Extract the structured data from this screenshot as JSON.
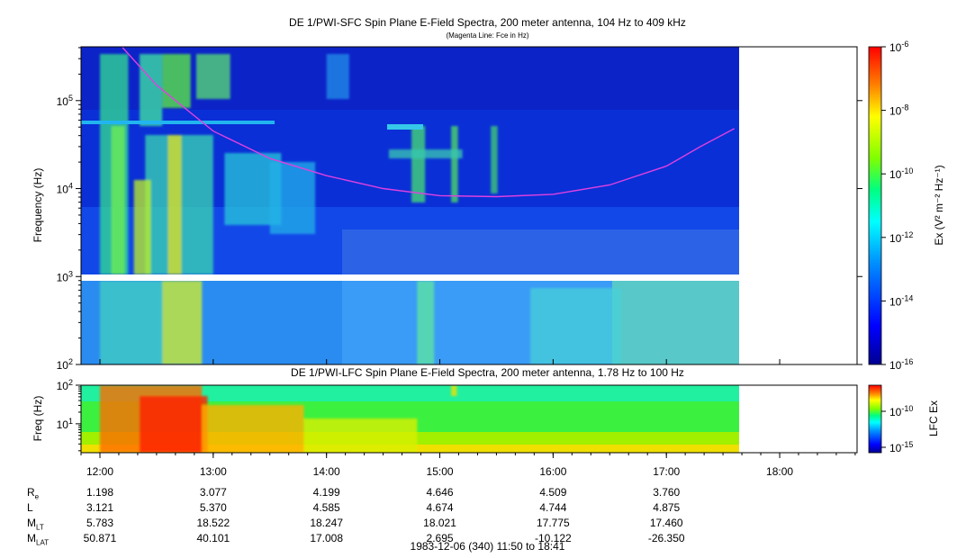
{
  "colors": {
    "background": "#ffffff",
    "fce_line": "#e040e0",
    "gap": "#ffffff"
  },
  "titles": {
    "sfc_title": "DE 1/PWI-SFC  Spin Plane E-Field Spectra, 200 meter antenna, 104 Hz to 409 kHz",
    "sfc_subtitle": "(Magenta Line: Fce in Hz)",
    "lfc_title": "DE 1/PWI-LFC  Spin Plane E-Field Spectra, 200 meter antenna, 1.78 Hz to 100 Hz",
    "footer": "1983-12-06 (340) 11:50 to 18:41"
  },
  "ephemeris": {
    "times": [
      "12:00",
      "13:00",
      "14:00",
      "15:00",
      "16:00",
      "17:00",
      "18:00"
    ],
    "rows": [
      {
        "label": "R",
        "sub": "e",
        "values": [
          "1.198",
          "3.077",
          "4.199",
          "4.646",
          "4.509",
          "3.760"
        ]
      },
      {
        "label": "L",
        "sub": "",
        "values": [
          "3.121",
          "5.370",
          "4.585",
          "4.674",
          "4.744",
          "4.875"
        ]
      },
      {
        "label": "M",
        "sub": "LT",
        "values": [
          "5.783",
          "18.522",
          "18.247",
          "18.021",
          "17.775",
          "17.460"
        ]
      },
      {
        "label": "M",
        "sub": "LAT",
        "values": [
          "50.871",
          "40.101",
          "17.008",
          "2.695",
          "-10.122",
          "-26.350"
        ]
      }
    ]
  },
  "chart_data": [
    {
      "type": "heatmap",
      "title": "DE 1/PWI-SFC  Spin Plane E-Field Spectra, 200 meter antenna, 104 Hz to 409 kHz",
      "subtitle": "(Magenta Line: Fce in Hz)",
      "xlabel": "",
      "ylabel": "Frequency (Hz)",
      "yscale": "log",
      "ylim": [
        100,
        409000
      ],
      "y_ticks": [
        {
          "base": "10",
          "exp": "2"
        },
        {
          "base": "10",
          "exp": "3"
        },
        {
          "base": "10",
          "exp": "4"
        },
        {
          "base": "10",
          "exp": "5"
        }
      ],
      "xlim_hours": [
        11.833,
        18.683
      ],
      "data_end_hours": 17.62,
      "x_ticks": [
        "12:00",
        "13:00",
        "14:00",
        "15:00",
        "16:00",
        "17:00",
        "18:00"
      ],
      "colorbar": {
        "label": "Ex (V² m⁻² Hz⁻¹)",
        "scale": "log",
        "range": [
          1e-16,
          1e-06
        ],
        "ticks": [
          {
            "base": "10",
            "exp": "-6"
          },
          {
            "base": "10",
            "exp": "-8"
          },
          {
            "base": "10",
            "exp": "-10"
          },
          {
            "base": "10",
            "exp": "-12"
          },
          {
            "base": "10",
            "exp": "-14"
          },
          {
            "base": "10",
            "exp": "-16"
          }
        ]
      },
      "fce_line": {
        "name": "Fce in Hz",
        "points": [
          {
            "t": 12.2,
            "f": 400000
          },
          {
            "t": 12.5,
            "f": 150000
          },
          {
            "t": 13.0,
            "f": 45000
          },
          {
            "t": 13.5,
            "f": 22000
          },
          {
            "t": 14.0,
            "f": 14000
          },
          {
            "t": 14.5,
            "f": 10000
          },
          {
            "t": 15.0,
            "f": 8300
          },
          {
            "t": 15.5,
            "f": 8100
          },
          {
            "t": 16.0,
            "f": 8600
          },
          {
            "t": 16.5,
            "f": 11000
          },
          {
            "t": 17.0,
            "f": 18000
          },
          {
            "t": 17.3,
            "f": 30000
          },
          {
            "t": 17.6,
            "f": 48000
          }
        ]
      }
    },
    {
      "type": "heatmap",
      "title": "DE 1/PWI-LFC  Spin Plane E-Field Spectra, 200 meter antenna, 1.78 Hz to 100 Hz",
      "ylabel": "Freq (Hz)",
      "yscale": "log",
      "ylim": [
        1.78,
        100
      ],
      "y_ticks": [
        {
          "base": "10",
          "exp": "1"
        },
        {
          "base": "10",
          "exp": "2"
        }
      ],
      "xlim_hours": [
        11.833,
        18.683
      ],
      "data_end_hours": 17.62,
      "colorbar": {
        "label": "LFC Ex",
        "ticks": [
          {
            "base": "10",
            "exp": "-10"
          },
          {
            "base": "10",
            "exp": "-15"
          }
        ]
      }
    }
  ]
}
